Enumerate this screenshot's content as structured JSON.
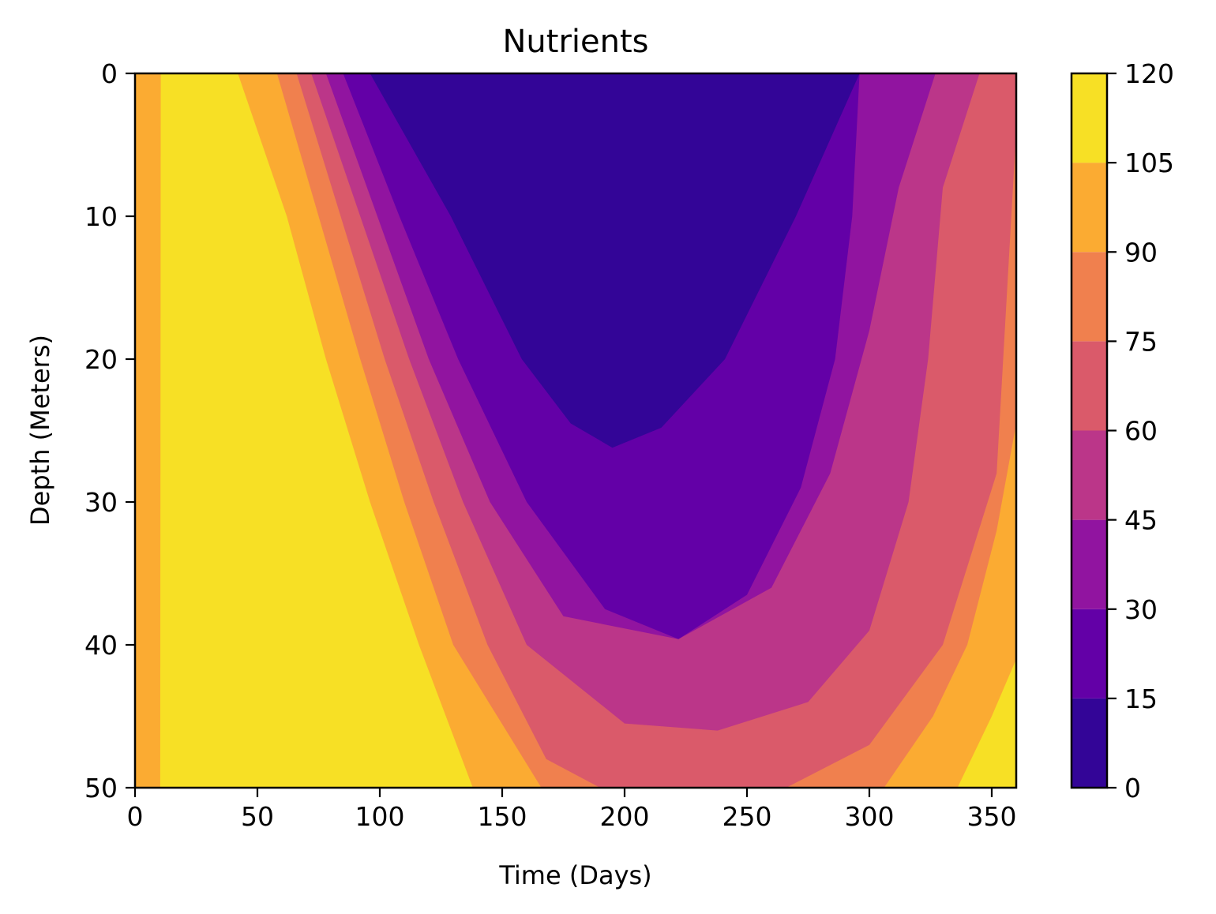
{
  "chart_data": {
    "type": "contourf",
    "title": "Nutrients",
    "xlabel": "Time (Days)",
    "ylabel": "Depth (Meters)",
    "xlim": [
      0,
      360
    ],
    "ylim": [
      50,
      0
    ],
    "y_inverted": true,
    "xticks": [
      0,
      50,
      100,
      150,
      200,
      250,
      300,
      350
    ],
    "yticks": [
      0,
      10,
      20,
      30,
      40,
      50
    ],
    "colormap": "plasma",
    "colorbar": {
      "levels": [
        0,
        15,
        30,
        45,
        60,
        75,
        90,
        105,
        120
      ],
      "tick_labels": [
        "0",
        "15",
        "30",
        "45",
        "60",
        "75",
        "90",
        "105",
        "120"
      ],
      "colors": [
        "#330597",
        "#6300a7",
        "#9114a0",
        "#bb3689",
        "#da5a6a",
        "#f0804e",
        "#fbab32",
        "#f7e025"
      ]
    },
    "contours": [
      {
        "level": 15,
        "left_edge_x_at_depth": [
          [
            0,
            96
          ],
          [
            10,
            129
          ],
          [
            20,
            158
          ],
          [
            26.2,
            195
          ]
        ],
        "right_edge_x_at_depth": [
          [
            0,
            296
          ],
          [
            10,
            270
          ],
          [
            20,
            241
          ],
          [
            26.2,
            195
          ]
        ],
        "vertex": [
          195,
          26.2
        ]
      },
      {
        "level": 30,
        "left_edge_x_at_depth": [
          [
            0,
            85
          ],
          [
            10,
            108
          ],
          [
            20,
            132
          ],
          [
            30,
            160
          ],
          [
            39.6,
            222
          ]
        ],
        "right_edge_x_at_depth": [
          [
            0,
            296
          ],
          [
            10,
            293
          ],
          [
            20,
            286
          ],
          [
            30,
            272
          ],
          [
            39.6,
            222
          ]
        ],
        "vertex": [
          222,
          39.6
        ]
      },
      {
        "level": 45,
        "left_edge_x_at_depth": [
          [
            0,
            78
          ],
          [
            10,
            99
          ],
          [
            20,
            120
          ],
          [
            30,
            145
          ],
          [
            40,
            175
          ],
          [
            46,
            238
          ]
        ],
        "right_edge_x_at_depth": [
          [
            0,
            327
          ],
          [
            10,
            321
          ],
          [
            20,
            312
          ],
          [
            30,
            300
          ],
          [
            40,
            284
          ],
          [
            46,
            238
          ]
        ],
        "vertex": [
          238,
          46
        ]
      },
      {
        "level": 60,
        "left_edge_x_at_depth": [
          [
            0,
            72
          ],
          [
            10,
            92
          ],
          [
            20,
            112
          ],
          [
            30,
            134
          ],
          [
            40,
            160
          ],
          [
            50,
            190
          ]
        ],
        "right_edge_x_at_depth": [
          [
            0,
            345
          ],
          [
            10,
            352
          ],
          [
            20,
            356
          ],
          [
            30,
            345
          ],
          [
            40,
            330
          ],
          [
            50,
            266
          ]
        ]
      },
      {
        "level": 75,
        "left_edge_x_at_depth": [
          [
            0,
            66
          ],
          [
            10,
            84
          ],
          [
            20,
            102
          ],
          [
            30,
            122
          ],
          [
            40,
            144
          ],
          [
            50,
            166
          ]
        ],
        "right_edge_x_at_depth": [
          [
            2,
            360
          ],
          [
            10,
            360
          ],
          [
            24.5,
            360
          ],
          [
            40,
            340
          ],
          [
            50,
            306
          ]
        ]
      },
      {
        "level": 90,
        "left_edge_x_at_depth": [
          [
            0,
            58
          ],
          [
            10,
            75
          ],
          [
            20,
            92
          ],
          [
            30,
            110
          ],
          [
            40,
            130
          ],
          [
            50,
            140
          ]
        ],
        "right_edge_x_at_depth": [
          [
            41,
            360
          ],
          [
            50,
            335
          ]
        ]
      },
      {
        "level": 105,
        "left_edge_x_at_depth": [
          [
            0,
            42
          ],
          [
            10,
            62
          ],
          [
            20,
            78
          ],
          [
            30,
            96
          ],
          [
            40,
            116
          ],
          [
            50,
            138
          ]
        ],
        "right_edge_x_at_depth": []
      },
      {
        "level": 105,
        "note": "left strip",
        "x_range": [
          0,
          10
        ]
      }
    ]
  }
}
